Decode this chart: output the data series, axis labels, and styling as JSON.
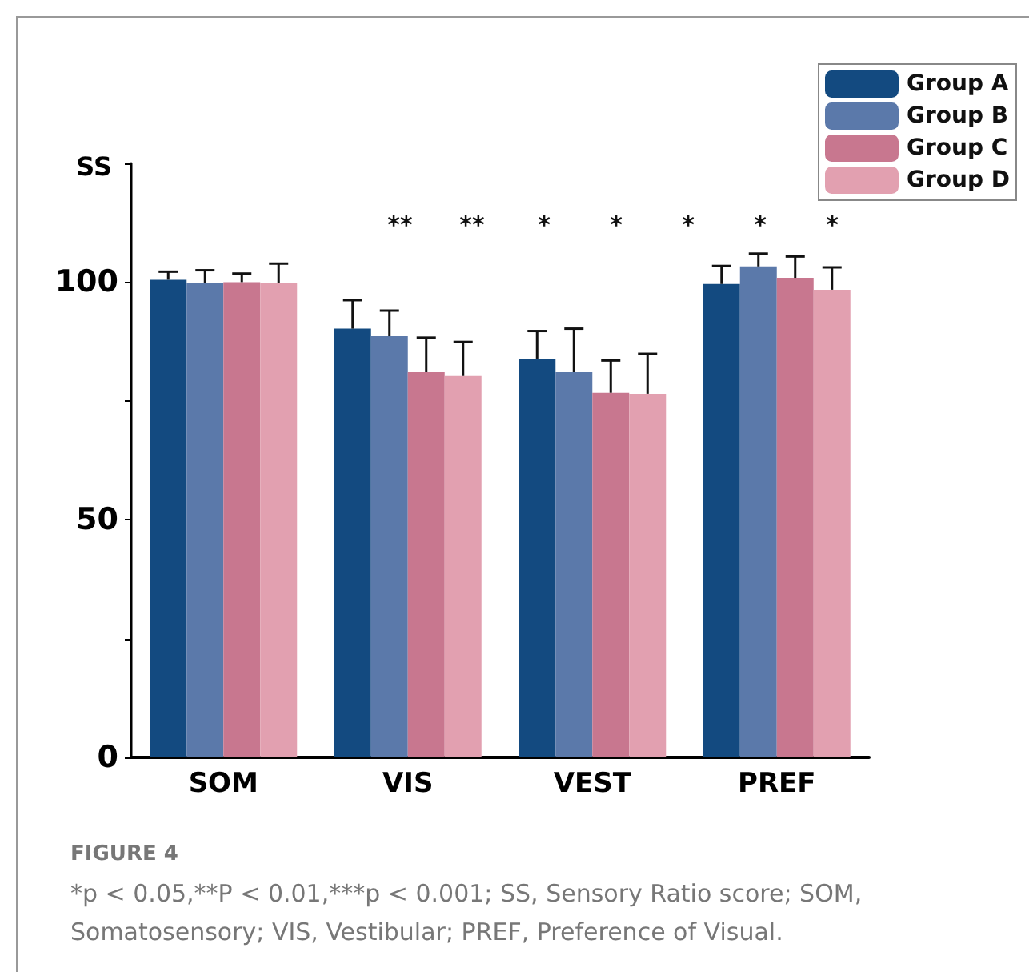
{
  "chart_data": {
    "type": "bar",
    "ylabel": "SS",
    "categories": [
      "SOM",
      "VIS",
      "VEST",
      "PREF"
    ],
    "series": [
      {
        "name": "Group A",
        "color": "#134a80",
        "values": [
          100.5,
          90.2,
          83.9,
          99.6
        ],
        "errors": [
          [
            100.5,
            102.2
          ],
          [
            90.2,
            96.2
          ],
          [
            83.9,
            89.7
          ],
          [
            99.6,
            103.4
          ]
        ]
      },
      {
        "name": "Group B",
        "color": "#5b79aa",
        "values": [
          99.9,
          88.6,
          81.2,
          103.3
        ],
        "errors": [
          [
            99.9,
            102.5
          ],
          [
            88.6,
            94
          ],
          [
            81.2,
            90.2
          ],
          [
            103.3,
            106
          ]
        ]
      },
      {
        "name": "Group C",
        "color": "#c8778f",
        "values": [
          100,
          81.2,
          76.7,
          100.9
        ],
        "errors": [
          [
            100,
            101.8
          ],
          [
            81.2,
            88.3
          ],
          [
            76.7,
            83.5
          ],
          [
            100.9,
            105.4
          ]
        ]
      },
      {
        "name": "Group D",
        "color": "#e2a0b0",
        "values": [
          99.8,
          80.4,
          76.5,
          98.4
        ],
        "errors": [
          [
            99.8,
            103.9
          ],
          [
            80.4,
            87.4
          ],
          [
            76.5,
            84.9
          ],
          [
            98.4,
            103.1
          ]
        ]
      }
    ],
    "ylim": [
      0,
      125
    ],
    "yticks": [
      0,
      {
        "value": 25,
        "label": null
      },
      50,
      {
        "value": 75,
        "label": null
      },
      100,
      {
        "value": 125,
        "label": null
      }
    ],
    "grid": false,
    "legend": "top right",
    "annotations": [
      "**",
      "**",
      "*",
      "*",
      "*",
      "*",
      "*",
      "FIGURE 4",
      "*p < 0.05,**P < 0.01,***p < 0.001; SS, Sensory Ratio score; SOM, Somatosensory; VIS, Vestibular; PREF, Preference of Visual."
    ]
  }
}
